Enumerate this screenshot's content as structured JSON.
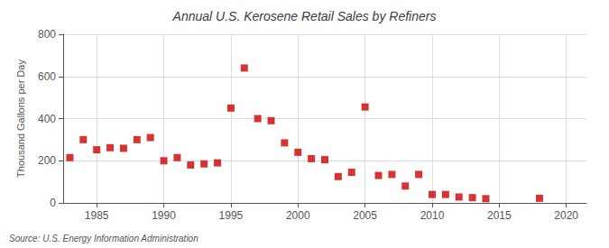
{
  "chart_data": {
    "type": "scatter",
    "title": "Annual U.S. Kerosene Retail Sales by Refiners",
    "ylabel": "Thousand Gallons per Day",
    "annotation": "Source: U.S. Energy Information Administration",
    "x": [
      1983,
      1984,
      1985,
      1986,
      1987,
      1988,
      1989,
      1990,
      1991,
      1992,
      1993,
      1994,
      1995,
      1996,
      1997,
      1998,
      1999,
      2000,
      2001,
      2002,
      2003,
      2004,
      2005,
      2006,
      2007,
      2008,
      2009,
      2010,
      2011,
      2012,
      2013,
      2014,
      2018
    ],
    "values": [
      215,
      300,
      252,
      262,
      259,
      300,
      310,
      200,
      215,
      180,
      185,
      190,
      450,
      640,
      400,
      390,
      285,
      240,
      210,
      205,
      125,
      145,
      455,
      130,
      135,
      80,
      135,
      40,
      40,
      28,
      25,
      20,
      22
    ],
    "color": "#cc0000",
    "marker": "square",
    "xlim": [
      1982.5,
      2021.5
    ],
    "xticks": [
      1985,
      1990,
      1995,
      2000,
      2005,
      2010,
      2015,
      2020
    ],
    "ylim": [
      0,
      800
    ],
    "yticks": [
      0,
      200,
      400,
      600,
      800
    ],
    "grid": true
  }
}
